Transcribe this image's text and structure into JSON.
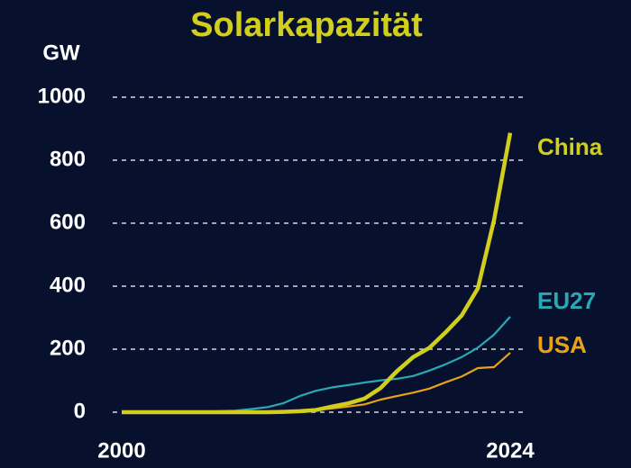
{
  "chart_data": {
    "type": "line",
    "title": "Solarkapazität",
    "y_label": "GW",
    "x": [
      2000,
      2001,
      2002,
      2003,
      2004,
      2005,
      2006,
      2007,
      2008,
      2009,
      2010,
      2011,
      2012,
      2013,
      2014,
      2015,
      2016,
      2017,
      2018,
      2019,
      2020,
      2021,
      2022,
      2023,
      2024
    ],
    "series": [
      {
        "name": "China",
        "color": "#d2cf1c",
        "values": [
          0,
          0,
          0,
          0,
          0,
          0,
          0,
          0,
          0,
          0,
          1,
          3,
          7,
          18,
          28,
          43,
          77,
          130,
          175,
          204,
          253,
          307,
          393,
          609,
          887
        ]
      },
      {
        "name": "EU27",
        "color": "#2aa8b4",
        "values": [
          0.1,
          0.2,
          0.3,
          0.5,
          1,
          2,
          3,
          5,
          10,
          16,
          29,
          51,
          68,
          79,
          86,
          94,
          101,
          106,
          115,
          132,
          152,
          175,
          205,
          246,
          303
        ]
      },
      {
        "name": "USA",
        "color": "#e7a21a",
        "values": [
          0.1,
          0.1,
          0.2,
          0.3,
          0.4,
          0.5,
          0.7,
          1,
          1.5,
          2,
          2.5,
          4,
          7,
          12,
          18,
          25,
          40,
          51,
          62,
          75,
          95,
          113,
          140,
          143,
          189
        ]
      }
    ],
    "xlim": [
      2000,
      2024
    ],
    "xticks": [
      2000,
      2024
    ],
    "ylim": [
      0,
      1000
    ],
    "yticks": [
      0,
      200,
      400,
      600,
      800,
      1000
    ],
    "grid": true
  }
}
